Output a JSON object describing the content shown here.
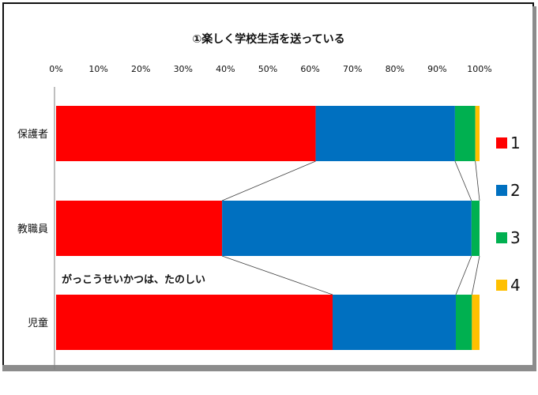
{
  "chart_data": {
    "type": "bar",
    "orientation": "horizontal",
    "stacked": true,
    "normalized_percent": true,
    "title": "①楽しく学校生活を送っている",
    "categories": [
      "保護者",
      "教職員",
      "児童"
    ],
    "x_ticks": [
      "0%",
      "10%",
      "20%",
      "30%",
      "40%",
      "50%",
      "60%",
      "70%",
      "80%",
      "90%",
      "100%"
    ],
    "xlim": [
      0,
      100
    ],
    "series": [
      {
        "name": "1",
        "color": "#ff0000",
        "values": [
          61.3,
          39.2,
          65.3
        ]
      },
      {
        "name": "2",
        "color": "#0070c0",
        "values": [
          32.9,
          58.9,
          29.1
        ]
      },
      {
        "name": "3",
        "color": "#00b050",
        "values": [
          4.8,
          1.9,
          3.8
        ]
      },
      {
        "name": "4",
        "color": "#ffc000",
        "values": [
          1.0,
          0.0,
          1.8
        ]
      }
    ],
    "legend_position": "right",
    "grid": false,
    "series_lines": true,
    "annotation": "がっこうせいかつは、たのしい"
  }
}
